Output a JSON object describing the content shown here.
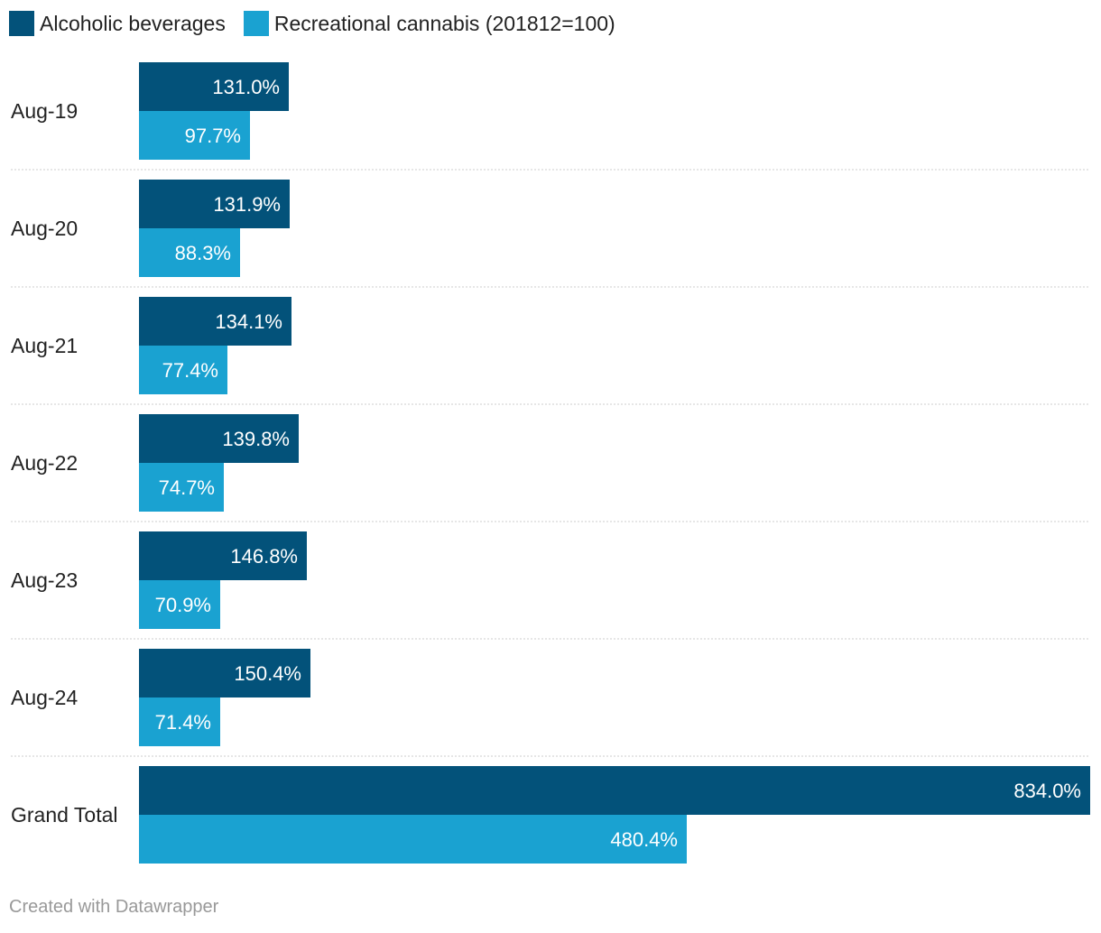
{
  "legend": [
    {
      "label": "Alcoholic beverages",
      "color": "#03527a"
    },
    {
      "label": "Recreational cannabis (201812=100)",
      "color": "#1aa2d1"
    }
  ],
  "footer": "Created with Datawrapper",
  "chart_data": {
    "type": "bar",
    "orientation": "horizontal",
    "grouped": true,
    "categories": [
      "Aug-19",
      "Aug-20",
      "Aug-21",
      "Aug-22",
      "Aug-23",
      "Aug-24",
      "Grand Total"
    ],
    "series": [
      {
        "name": "Alcoholic beverages",
        "color": "#03527a",
        "values": [
          131.0,
          131.9,
          134.1,
          139.8,
          146.8,
          150.4,
          834.0
        ],
        "labels": [
          "131.0%",
          "131.9%",
          "134.1%",
          "139.8%",
          "146.8%",
          "150.4%",
          "834.0%"
        ]
      },
      {
        "name": "Recreational cannabis (201812=100)",
        "color": "#1aa2d1",
        "values": [
          97.7,
          88.3,
          77.4,
          74.7,
          70.9,
          71.4,
          480.4
        ],
        "labels": [
          "97.7%",
          "88.3%",
          "77.4%",
          "74.7%",
          "70.9%",
          "71.4%",
          "480.4%"
        ]
      }
    ],
    "xlim": [
      0,
      834.0
    ],
    "legend_position": "top-left",
    "grid": false,
    "separators": "dotted"
  }
}
